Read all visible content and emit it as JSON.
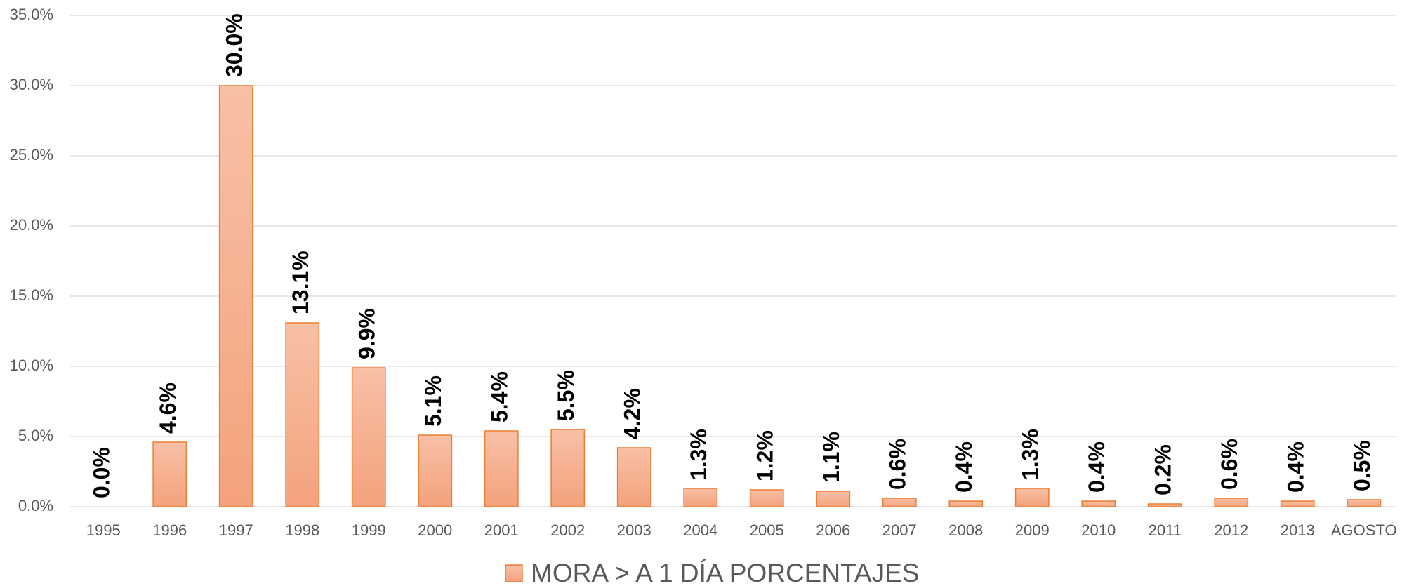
{
  "chart_data": {
    "type": "bar",
    "categories": [
      "1995",
      "1996",
      "1997",
      "1998",
      "1999",
      "2000",
      "2001",
      "2002",
      "2003",
      "2004",
      "2005",
      "2006",
      "2007",
      "2008",
      "2009",
      "2010",
      "2011",
      "2012",
      "2013",
      "AGOSTO"
    ],
    "series": [
      {
        "name": "MORA > A 1 DÍA PORCENTAJES",
        "color": "#ed7d31",
        "values": [
          0.0,
          4.6,
          30.0,
          13.1,
          9.9,
          5.1,
          5.4,
          5.5,
          4.2,
          1.3,
          1.2,
          1.1,
          0.6,
          0.4,
          1.3,
          0.4,
          0.2,
          0.6,
          0.4,
          0.5
        ],
        "value_labels": [
          "0.0%",
          "4.6%",
          "30.0%",
          "13.1%",
          "9.9%",
          "5.1%",
          "5.4%",
          "5.5%",
          "4.2%",
          "1.3%",
          "1.2%",
          "1.1%",
          "0.6%",
          "0.4%",
          "1.3%",
          "0.4%",
          "0.2%",
          "0.6%",
          "0.4%",
          "0.5%"
        ]
      }
    ],
    "ylim": [
      0,
      35
    ],
    "yticks": [
      {
        "value": 0,
        "label": "0.0%"
      },
      {
        "value": 5,
        "label": "5.0%"
      },
      {
        "value": 10,
        "label": "10.0%"
      },
      {
        "value": 15,
        "label": "15.0%"
      },
      {
        "value": 20,
        "label": "20.0%"
      },
      {
        "value": 25,
        "label": "25.0%"
      },
      {
        "value": 30,
        "label": "30.0%"
      },
      {
        "value": 35,
        "label": "35.0%"
      }
    ],
    "grid": true,
    "legend": "bottom"
  }
}
